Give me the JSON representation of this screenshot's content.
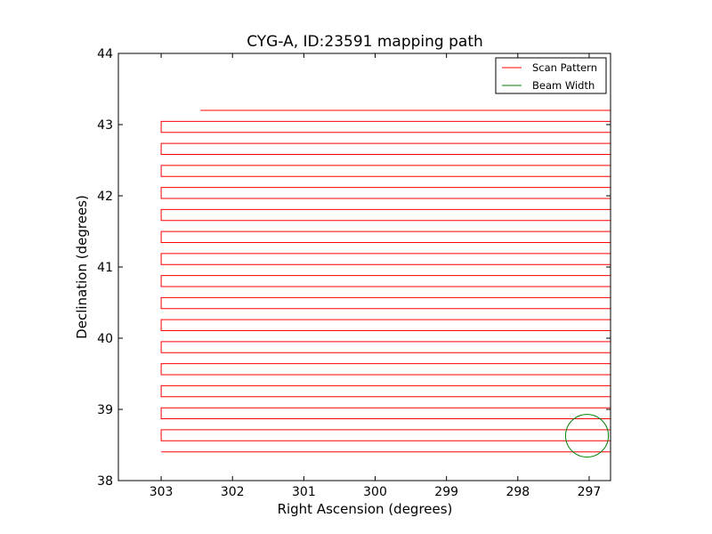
{
  "chart_data": {
    "type": "line",
    "title": "CYG-A, ID:23591 mapping path",
    "xlabel": "Right Ascension (degrees)",
    "ylabel": "Declination (degrees)",
    "xlim": [
      303.6,
      296.7
    ],
    "ylim": [
      38,
      44
    ],
    "x_inverted": true,
    "xticks": [
      303,
      302,
      301,
      300,
      299,
      298,
      297
    ],
    "yticks": [
      38,
      39,
      40,
      41,
      42,
      43,
      44
    ],
    "grid": false,
    "legend_position": "top-right",
    "legend": [
      {
        "label": "Scan Pattern",
        "color": "#ff0000"
      },
      {
        "label": "Beam Width",
        "color": "#008000"
      }
    ],
    "scan_pattern": {
      "name": "Scan Pattern",
      "color": "#ff0000",
      "ra_start": 303.0,
      "ra_end": 296.7,
      "top_row_ra_start": 302.45,
      "dec_top": 43.2,
      "dec_bottom": 38.25,
      "row_spacing": 0.1547
    },
    "beam_width": {
      "name": "Beam Width",
      "color": "#008000",
      "ra_center": 297.03,
      "dec_center": 38.63,
      "radius_deg": 0.3
    }
  }
}
